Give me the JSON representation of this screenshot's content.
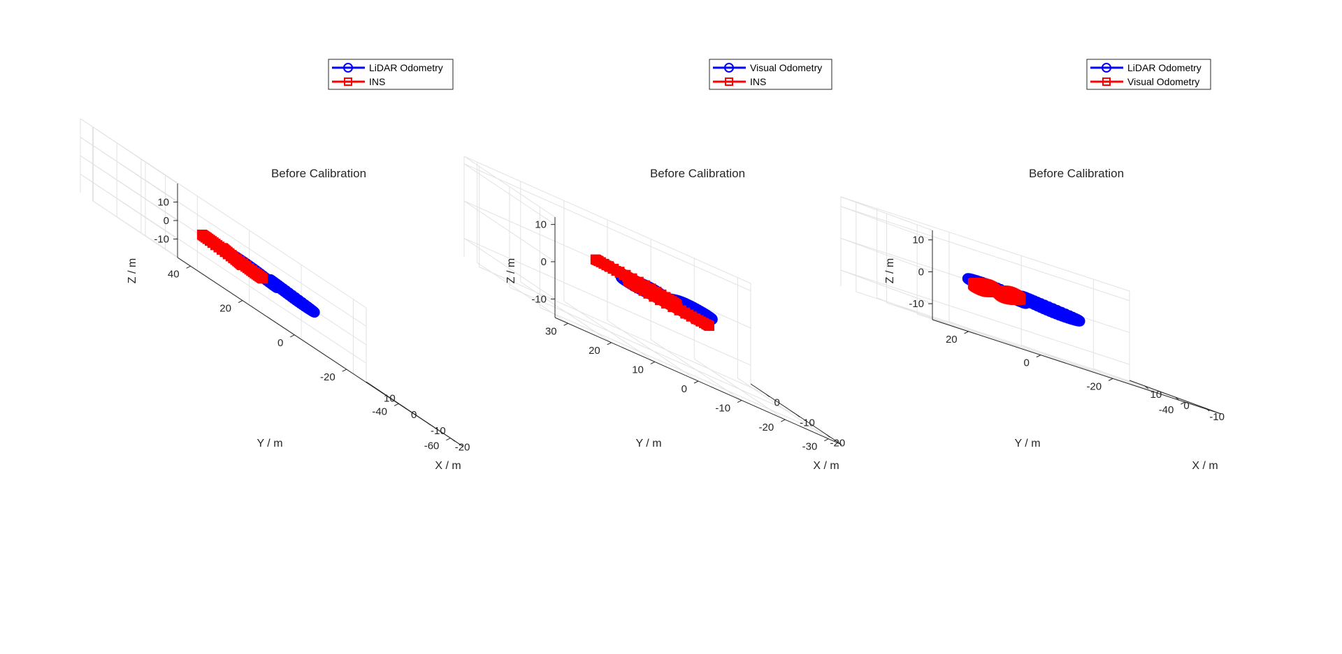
{
  "chart_data": [
    {
      "type": "line",
      "projection": "3d",
      "title": "Before Calibration",
      "xlabel": "X / m",
      "ylabel": "Y / m",
      "zlabel": "Z / m",
      "x_ticks": [
        "-20",
        "-10",
        "0",
        "10"
      ],
      "y_ticks": [
        "-60",
        "-40",
        "-20",
        "0",
        "20",
        "40"
      ],
      "z_ticks": [
        "-10",
        "0",
        "10"
      ],
      "xlim": [
        -25,
        15
      ],
      "ylim": [
        -65,
        45
      ],
      "zlim": [
        -20,
        20
      ],
      "grid": true,
      "legend_position": "top-right",
      "series": [
        {
          "name": "LiDAR Odometry",
          "color": "#0000ff",
          "marker": "circle",
          "center": [
            5,
            -20,
            0
          ],
          "radius": 8.5,
          "rotation": 0.25
        },
        {
          "name": "INS",
          "color": "#ff0000",
          "marker": "square",
          "center": [
            -8,
            8,
            0
          ],
          "radius": 8.0,
          "rotation": 0.0
        }
      ]
    },
    {
      "type": "line",
      "projection": "3d",
      "title": "Before Calibration",
      "xlabel": "X / m",
      "ylabel": "Y / m",
      "zlabel": "Z / m",
      "x_ticks": [
        "-20",
        "-10",
        "0"
      ],
      "y_ticks": [
        "-30",
        "-20",
        "-10",
        "0",
        "10",
        "20",
        "30"
      ],
      "z_ticks": [
        "-10",
        "0",
        "10"
      ],
      "xlim": [
        -25,
        5
      ],
      "ylim": [
        -33,
        33
      ],
      "zlim": [
        -15,
        12
      ],
      "grid": true,
      "legend_position": "top-right",
      "series": [
        {
          "name": "Visual Odometry",
          "color": "#0000ff",
          "marker": "circle",
          "center": [
            -6,
            -6,
            0
          ],
          "radius": 4.0,
          "rotation": 1.3
        },
        {
          "name": "INS",
          "color": "#ff0000",
          "marker": "square",
          "center": [
            -7,
            -2,
            0
          ],
          "radius": 10.0,
          "rotation": 0.0
        }
      ]
    },
    {
      "type": "line",
      "projection": "3d",
      "title": "Before Calibration",
      "xlabel": "X / m",
      "ylabel": "Y / m",
      "zlabel": "Z / m",
      "x_ticks": [
        "-10",
        "0",
        "10"
      ],
      "y_ticks": [
        "-40",
        "-20",
        "0",
        "20"
      ],
      "z_ticks": [
        "-10",
        "0",
        "10"
      ],
      "xlim": [
        -15,
        15
      ],
      "ylim": [
        -50,
        30
      ],
      "zlim": [
        -15,
        13
      ],
      "grid": true,
      "legend_position": "top-right",
      "series": [
        {
          "name": "LiDAR Odometry",
          "color": "#0000ff",
          "marker": "circle",
          "center": [
            0,
            -8,
            0
          ],
          "radius": 8.0,
          "rotation": 0.35
        },
        {
          "name": "Visual Odometry",
          "color": "#ff0000",
          "marker": "square",
          "center": [
            -3,
            2,
            0
          ],
          "radius": 2.5,
          "rotation": 1.4
        }
      ]
    }
  ]
}
